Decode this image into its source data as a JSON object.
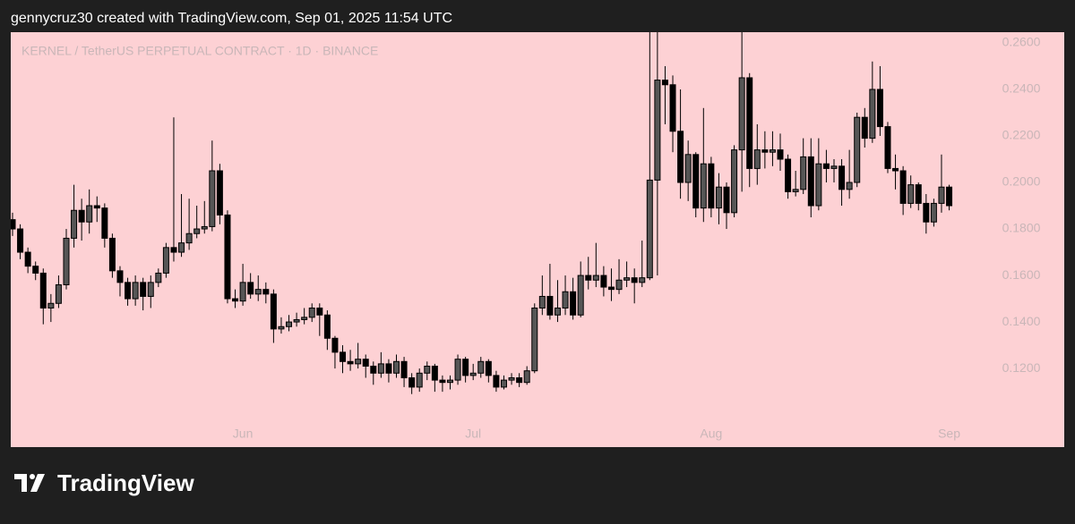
{
  "header": {
    "text": "gennycruz30 created with TradingView.com, Sep 01, 2025 11:54 UTC"
  },
  "footer": {
    "brand": "TradingView"
  },
  "chart_data": {
    "type": "candlestick",
    "title": "KERNEL / TetherUS PERPETUAL CONTRACT · 1D · BINANCE",
    "background": "#fdd1d4",
    "up_color": "#565656",
    "down_color": "#000000",
    "wick_color": "#000000",
    "categories": [
      null,
      null,
      null,
      null,
      null,
      null,
      null,
      null,
      null,
      null,
      null,
      null,
      null,
      null,
      null,
      null,
      null,
      null,
      null,
      null,
      null,
      null,
      null,
      null,
      null,
      null,
      null,
      null,
      null,
      null,
      "Jun",
      null,
      null,
      null,
      null,
      null,
      null,
      null,
      null,
      null,
      null,
      null,
      null,
      null,
      null,
      null,
      null,
      null,
      null,
      null,
      null,
      null,
      null,
      null,
      null,
      null,
      null,
      null,
      null,
      null,
      "Jul",
      null,
      null,
      null,
      null,
      null,
      null,
      null,
      null,
      null,
      null,
      null,
      null,
      null,
      null,
      null,
      null,
      null,
      null,
      null,
      null,
      null,
      null,
      null,
      null,
      null,
      null,
      null,
      null,
      null,
      null,
      "Aug",
      null,
      null,
      null,
      null,
      null,
      null,
      null,
      null,
      null,
      null,
      null,
      null,
      null,
      null,
      null,
      null,
      null,
      null,
      null,
      null,
      null,
      null,
      null,
      null,
      null,
      null,
      null,
      null,
      null,
      null,
      "Sep"
    ],
    "open": [
      0.184,
      0.18,
      0.17,
      0.164,
      0.161,
      0.146,
      0.148,
      0.156,
      0.176,
      0.188,
      0.183,
      0.19,
      0.189,
      0.176,
      0.162,
      0.157,
      0.15,
      0.157,
      0.151,
      0.157,
      0.161,
      0.172,
      0.17,
      0.174,
      0.178,
      0.18,
      0.181,
      0.205,
      0.186,
      0.15,
      0.149,
      0.157,
      0.152,
      0.154,
      0.152,
      0.137,
      0.138,
      0.14,
      0.141,
      0.142,
      0.146,
      0.143,
      0.133,
      0.127,
      0.123,
      0.122,
      0.124,
      0.121,
      0.118,
      0.122,
      0.118,
      0.123,
      0.116,
      0.112,
      0.118,
      0.121,
      0.115,
      0.114,
      0.115,
      0.124,
      0.117,
      0.118,
      0.123,
      0.117,
      0.112,
      0.115,
      0.116,
      0.114,
      0.119,
      0.146,
      0.151,
      0.143,
      0.146,
      0.153,
      0.143,
      0.16,
      0.158,
      0.16,
      0.155,
      0.154,
      0.158,
      0.159,
      0.157,
      0.159,
      0.201,
      0.244,
      0.242,
      0.222,
      0.2,
      0.212,
      0.189,
      0.208,
      0.189,
      0.198,
      0.187,
      0.214,
      0.245,
      0.206,
      0.214,
      0.213,
      0.214,
      0.21,
      0.196,
      0.197,
      0.211,
      0.19,
      0.208,
      0.206,
      0.207,
      0.197,
      0.2,
      0.228,
      0.219,
      0.24,
      0.224,
      0.206,
      0.205,
      0.191,
      0.199,
      0.191,
      0.183,
      0.191,
      0.198
    ],
    "high": [
      0.187,
      0.182,
      0.172,
      0.166,
      0.163,
      0.152,
      0.16,
      0.18,
      0.199,
      0.193,
      0.197,
      0.194,
      0.191,
      0.178,
      0.164,
      0.159,
      0.16,
      0.159,
      0.16,
      0.163,
      0.174,
      0.228,
      0.195,
      0.193,
      0.19,
      0.192,
      0.218,
      0.208,
      0.188,
      0.154,
      0.165,
      0.161,
      0.16,
      0.157,
      0.154,
      0.142,
      0.143,
      0.144,
      0.146,
      0.148,
      0.148,
      0.145,
      0.134,
      0.13,
      0.128,
      0.131,
      0.126,
      0.123,
      0.127,
      0.124,
      0.126,
      0.125,
      0.118,
      0.12,
      0.123,
      0.122,
      0.117,
      0.117,
      0.126,
      0.125,
      0.122,
      0.125,
      0.124,
      0.119,
      0.117,
      0.118,
      0.118,
      0.121,
      0.148,
      0.16,
      0.165,
      0.158,
      0.16,
      0.159,
      0.166,
      0.168,
      0.174,
      0.164,
      0.163,
      0.167,
      0.166,
      0.163,
      0.175,
      0.265,
      0.265,
      0.25,
      0.246,
      0.24,
      0.218,
      0.213,
      0.232,
      0.211,
      0.204,
      0.2,
      0.216,
      0.265,
      0.247,
      0.225,
      0.222,
      0.222,
      0.221,
      0.212,
      0.205,
      0.219,
      0.219,
      0.219,
      0.214,
      0.21,
      0.21,
      0.214,
      0.23,
      0.232,
      0.252,
      0.25,
      0.226,
      0.212,
      0.207,
      0.203,
      0.2,
      0.195,
      0.193,
      0.212,
      0.199
    ],
    "low": [
      0.177,
      0.167,
      0.161,
      0.158,
      0.139,
      0.14,
      0.146,
      0.154,
      0.172,
      0.175,
      0.178,
      0.183,
      0.172,
      0.159,
      0.151,
      0.147,
      0.147,
      0.145,
      0.146,
      0.155,
      0.159,
      0.166,
      0.168,
      0.171,
      0.176,
      0.178,
      0.179,
      0.182,
      0.148,
      0.146,
      0.147,
      0.15,
      0.149,
      0.148,
      0.131,
      0.135,
      0.136,
      0.138,
      0.139,
      0.14,
      0.134,
      0.128,
      0.12,
      0.118,
      0.119,
      0.12,
      0.116,
      0.113,
      0.116,
      0.114,
      0.116,
      0.112,
      0.109,
      0.11,
      0.115,
      0.11,
      0.11,
      0.111,
      0.113,
      0.114,
      0.115,
      0.116,
      0.114,
      0.11,
      0.111,
      0.113,
      0.112,
      0.113,
      0.118,
      0.143,
      0.141,
      0.14,
      0.143,
      0.141,
      0.142,
      0.154,
      0.155,
      0.151,
      0.149,
      0.152,
      0.155,
      0.148,
      0.155,
      0.158,
      0.16,
      0.225,
      0.213,
      0.193,
      0.192,
      0.185,
      0.183,
      0.185,
      0.182,
      0.18,
      0.185,
      0.196,
      0.198,
      0.199,
      0.206,
      0.207,
      0.205,
      0.193,
      0.194,
      0.195,
      0.185,
      0.188,
      0.2,
      0.2,
      0.19,
      0.193,
      0.198,
      0.215,
      0.217,
      0.22,
      0.204,
      0.197,
      0.186,
      0.189,
      0.188,
      0.178,
      0.181,
      0.187,
      0.188
    ],
    "close": [
      0.18,
      0.17,
      0.164,
      0.161,
      0.146,
      0.148,
      0.156,
      0.176,
      0.188,
      0.183,
      0.19,
      0.189,
      0.176,
      0.162,
      0.157,
      0.15,
      0.157,
      0.151,
      0.157,
      0.161,
      0.172,
      0.17,
      0.174,
      0.178,
      0.18,
      0.181,
      0.205,
      0.186,
      0.15,
      0.149,
      0.157,
      0.152,
      0.154,
      0.152,
      0.137,
      0.138,
      0.14,
      0.141,
      0.142,
      0.146,
      0.143,
      0.133,
      0.127,
      0.123,
      0.122,
      0.124,
      0.121,
      0.118,
      0.122,
      0.118,
      0.123,
      0.116,
      0.112,
      0.118,
      0.121,
      0.115,
      0.114,
      0.115,
      0.124,
      0.117,
      0.118,
      0.123,
      0.117,
      0.112,
      0.115,
      0.116,
      0.114,
      0.119,
      0.146,
      0.151,
      0.143,
      0.146,
      0.153,
      0.143,
      0.16,
      0.158,
      0.16,
      0.155,
      0.154,
      0.158,
      0.159,
      0.157,
      0.159,
      0.201,
      0.244,
      0.242,
      0.222,
      0.2,
      0.212,
      0.189,
      0.208,
      0.189,
      0.198,
      0.187,
      0.214,
      0.245,
      0.206,
      0.214,
      0.213,
      0.214,
      0.21,
      0.196,
      0.197,
      0.211,
      0.19,
      0.208,
      0.206,
      0.207,
      0.197,
      0.2,
      0.228,
      0.219,
      0.24,
      0.224,
      0.206,
      0.205,
      0.191,
      0.199,
      0.191,
      0.183,
      0.191,
      0.198,
      0.19
    ],
    "ylim": [
      0.0862,
      0.2646
    ],
    "yticks": [
      {
        "value": 0.12,
        "label": "0.1200"
      },
      {
        "value": 0.14,
        "label": "0.1400"
      },
      {
        "value": 0.16,
        "label": "0.1600"
      },
      {
        "value": 0.18,
        "label": "0.1800"
      },
      {
        "value": 0.2,
        "label": "0.2000"
      },
      {
        "value": 0.22,
        "label": "0.2200"
      },
      {
        "value": 0.24,
        "label": "0.2400"
      },
      {
        "value": 0.26,
        "label": "0.2600"
      }
    ]
  }
}
